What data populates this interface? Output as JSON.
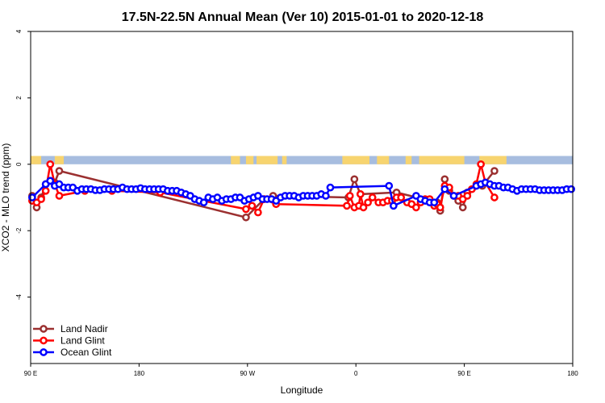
{
  "chart_data": {
    "type": "line",
    "title": "17.5N-22.5N Annual Mean (Ver 10)   2015-01-01 to 2020-12-18",
    "xlabel": "Longitude",
    "ylabel": "XCO2 - MLO trend (ppm)",
    "xlim": [
      -90,
      270
    ],
    "ylim": [
      -6,
      4
    ],
    "x_ticks": [
      {
        "value": -90,
        "label": "90 E"
      },
      {
        "value": -18,
        "label": "180"
      },
      {
        "value": 54,
        "label": "90 W"
      },
      {
        "value": 126,
        "label": "0"
      },
      {
        "value": 198,
        "label": "90 E"
      },
      {
        "value": 270,
        "label": "180"
      }
    ],
    "y_ticks": [
      {
        "value": 4,
        "label": "4"
      },
      {
        "value": 2,
        "label": "2"
      },
      {
        "value": 0,
        "label": "0"
      },
      {
        "value": -2,
        "label": "-2"
      },
      {
        "value": -4,
        "label": "-4"
      }
    ],
    "land_mask": {
      "y_range": [
        0,
        0.25
      ],
      "ocean_color": "#a7bddf",
      "land_color": "#f7d46f",
      "land_segments": [
        [
          -90,
          -83
        ],
        [
          -74,
          -68
        ],
        [
          43,
          49
        ],
        [
          53,
          58
        ],
        [
          60,
          74
        ],
        [
          77,
          80
        ],
        [
          117,
          135
        ],
        [
          140,
          148
        ],
        [
          159,
          163
        ],
        [
          168,
          198
        ],
        [
          208,
          226
        ]
      ]
    },
    "legend": {
      "position": "bottom-left"
    },
    "series": [
      {
        "name": "Land Nadir",
        "color": "#9b3030",
        "points": [
          [
            -89,
            -0.95
          ],
          [
            -86,
            -1.3
          ],
          [
            -83,
            -1.0
          ],
          [
            -80,
            -0.6
          ],
          [
            -77,
            -0.5
          ],
          [
            -74,
            -0.55
          ],
          [
            -71,
            -0.2
          ],
          [
            53,
            -1.6
          ],
          [
            65,
            -1.05
          ],
          [
            71,
            -0.95
          ],
          [
            121,
            -1.0
          ],
          [
            125,
            -0.45
          ],
          [
            129,
            -0.9
          ],
          [
            153,
            -0.85
          ],
          [
            180,
            -1.15
          ],
          [
            182,
            -1.4
          ],
          [
            185,
            -0.45
          ],
          [
            188,
            -0.8
          ],
          [
            194,
            -1.1
          ],
          [
            197,
            -1.3
          ],
          [
            200,
            -0.85
          ],
          [
            210,
            -0.65
          ],
          [
            218,
            -0.2
          ]
        ]
      },
      {
        "name": "Land Glint",
        "color": "#ff0000",
        "points": [
          [
            -89,
            -1.1
          ],
          [
            -86,
            -1.15
          ],
          [
            -83,
            -1.05
          ],
          [
            -80,
            -0.8
          ],
          [
            -77,
            -0.0
          ],
          [
            -74,
            -0.6
          ],
          [
            -71,
            -0.95
          ],
          [
            -54,
            -0.8
          ],
          [
            -36,
            -0.8
          ],
          [
            -4,
            -0.85
          ],
          [
            53,
            -1.35
          ],
          [
            57,
            -1.25
          ],
          [
            61,
            -1.45
          ],
          [
            65,
            -1.05
          ],
          [
            73,
            -1.2
          ],
          [
            120,
            -1.25
          ],
          [
            122,
            -0.95
          ],
          [
            125,
            -1.3
          ],
          [
            128,
            -1.25
          ],
          [
            129,
            -0.9
          ],
          [
            131,
            -1.3
          ],
          [
            134,
            -1.15
          ],
          [
            137,
            -1.0
          ],
          [
            141,
            -1.15
          ],
          [
            144,
            -1.15
          ],
          [
            147,
            -1.1
          ],
          [
            150,
            -1.1
          ],
          [
            153,
            -1.0
          ],
          [
            156,
            -1.0
          ],
          [
            160,
            -1.15
          ],
          [
            163,
            -1.2
          ],
          [
            166,
            -1.3
          ],
          [
            169,
            -1.15
          ],
          [
            172,
            -1.05
          ],
          [
            175,
            -1.05
          ],
          [
            178,
            -1.25
          ],
          [
            180,
            -1.2
          ],
          [
            182,
            -1.3
          ],
          [
            185,
            -0.65
          ],
          [
            188,
            -0.7
          ],
          [
            191,
            -0.95
          ],
          [
            194,
            -0.95
          ],
          [
            197,
            -1.05
          ],
          [
            200,
            -0.95
          ],
          [
            203,
            -0.75
          ],
          [
            206,
            -0.6
          ],
          [
            209,
            -0.0
          ],
          [
            212,
            -0.55
          ],
          [
            218,
            -1.0
          ]
        ]
      },
      {
        "name": "Ocean Glint",
        "color": "#0000ff",
        "points": [
          [
            -89,
            -1.0
          ],
          [
            -80,
            -0.6
          ],
          [
            -77,
            -0.5
          ],
          [
            -74,
            -0.65
          ],
          [
            -71,
            -0.6
          ],
          [
            -68,
            -0.7
          ],
          [
            -65,
            -0.7
          ],
          [
            -62,
            -0.7
          ],
          [
            -59,
            -0.8
          ],
          [
            -56,
            -0.75
          ],
          [
            -53,
            -0.75
          ],
          [
            -50,
            -0.75
          ],
          [
            -47,
            -0.78
          ],
          [
            -44,
            -0.78
          ],
          [
            -41,
            -0.75
          ],
          [
            -38,
            -0.75
          ],
          [
            -35,
            -0.75
          ],
          [
            -32,
            -0.75
          ],
          [
            -29,
            -0.7
          ],
          [
            -26,
            -0.75
          ],
          [
            -23,
            -0.75
          ],
          [
            -20,
            -0.75
          ],
          [
            -17,
            -0.72
          ],
          [
            -14,
            -0.75
          ],
          [
            -11,
            -0.75
          ],
          [
            -8,
            -0.75
          ],
          [
            -5,
            -0.75
          ],
          [
            -2,
            -0.75
          ],
          [
            1,
            -0.8
          ],
          [
            4,
            -0.8
          ],
          [
            7,
            -0.8
          ],
          [
            10,
            -0.85
          ],
          [
            13,
            -0.9
          ],
          [
            16,
            -0.95
          ],
          [
            19,
            -1.05
          ],
          [
            22,
            -1.1
          ],
          [
            25,
            -1.15
          ],
          [
            28,
            -1.0
          ],
          [
            31,
            -1.05
          ],
          [
            34,
            -1.0
          ],
          [
            37,
            -1.1
          ],
          [
            40,
            -1.05
          ],
          [
            43,
            -1.05
          ],
          [
            46,
            -1.0
          ],
          [
            49,
            -1.0
          ],
          [
            52,
            -1.1
          ],
          [
            55,
            -1.05
          ],
          [
            58,
            -1.0
          ],
          [
            61,
            -0.95
          ],
          [
            64,
            -1.05
          ],
          [
            67,
            -1.05
          ],
          [
            70,
            -1.05
          ],
          [
            73,
            -1.1
          ],
          [
            76,
            -1.0
          ],
          [
            79,
            -0.95
          ],
          [
            82,
            -0.95
          ],
          [
            85,
            -0.95
          ],
          [
            88,
            -1.0
          ],
          [
            91,
            -0.95
          ],
          [
            94,
            -0.95
          ],
          [
            97,
            -0.95
          ],
          [
            100,
            -0.95
          ],
          [
            103,
            -0.9
          ],
          [
            106,
            -0.95
          ],
          [
            109,
            -0.7
          ],
          [
            148,
            -0.65
          ],
          [
            151,
            -1.25
          ],
          [
            166,
            -0.95
          ],
          [
            169,
            -1.05
          ],
          [
            172,
            -1.1
          ],
          [
            175,
            -1.15
          ],
          [
            178,
            -1.15
          ],
          [
            185,
            -0.75
          ],
          [
            191,
            -0.95
          ],
          [
            206,
            -0.65
          ],
          [
            209,
            -0.6
          ],
          [
            212,
            -0.55
          ],
          [
            215,
            -0.6
          ],
          [
            218,
            -0.65
          ],
          [
            221,
            -0.65
          ],
          [
            224,
            -0.7
          ],
          [
            227,
            -0.7
          ],
          [
            230,
            -0.75
          ],
          [
            233,
            -0.8
          ],
          [
            236,
            -0.75
          ],
          [
            239,
            -0.75
          ],
          [
            242,
            -0.75
          ],
          [
            245,
            -0.75
          ],
          [
            248,
            -0.78
          ],
          [
            251,
            -0.78
          ],
          [
            254,
            -0.78
          ],
          [
            257,
            -0.78
          ],
          [
            260,
            -0.78
          ],
          [
            263,
            -0.78
          ],
          [
            266,
            -0.75
          ],
          [
            269,
            -0.75
          ]
        ]
      }
    ]
  }
}
